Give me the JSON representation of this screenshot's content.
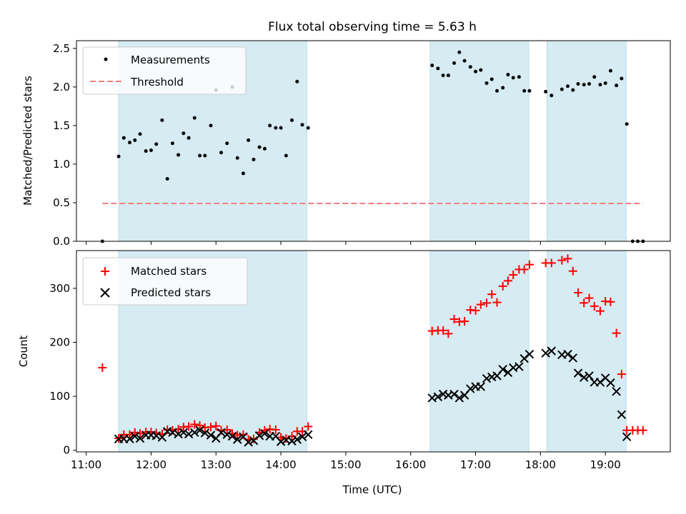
{
  "title": "Flux total observing time = 5.63 h",
  "xlabel": "Time (UTC)",
  "x_ticks": [
    "11:00",
    "12:00",
    "13:00",
    "14:00",
    "15:00",
    "16:00",
    "17:00",
    "18:00",
    "19:00"
  ],
  "colors": {
    "shade": "#add8e6",
    "threshold": "#f08080",
    "matched": "#ff0000",
    "predicted": "#000000",
    "measurement": "#000000"
  },
  "chart_data": [
    {
      "type": "scatter",
      "panel": "top",
      "xlim": [
        10.85,
        20.0
      ],
      "ylim": [
        0,
        2.6
      ],
      "ylabel": "Matched/Predicted stars",
      "y_ticks": [
        0.0,
        0.5,
        1.0,
        1.5,
        2.0,
        2.5
      ],
      "y_tick_labels": [
        "0.0",
        "0.5",
        "1.0",
        "1.5",
        "2.0",
        "2.5"
      ],
      "shaded_intervals": [
        [
          11.5,
          14.4
        ],
        [
          16.3,
          17.82
        ],
        [
          18.1,
          19.32
        ]
      ],
      "legend": {
        "placement": "top-left",
        "entries": [
          "Measurements",
          "Threshold"
        ]
      },
      "threshold": {
        "name": "Threshold",
        "y": 0.49,
        "x_range": [
          11.25,
          19.58
        ]
      },
      "series": [
        {
          "name": "Measurements",
          "points": [
            [
              11.25,
              0.0
            ],
            [
              11.5,
              1.1
            ],
            [
              11.58,
              1.34
            ],
            [
              11.67,
              1.28
            ],
            [
              11.75,
              1.31
            ],
            [
              11.83,
              1.39
            ],
            [
              11.92,
              1.17
            ],
            [
              12.0,
              1.18
            ],
            [
              12.08,
              1.26
            ],
            [
              12.17,
              1.57
            ],
            [
              12.25,
              0.81
            ],
            [
              12.33,
              1.27
            ],
            [
              12.42,
              1.12
            ],
            [
              12.5,
              1.4
            ],
            [
              12.58,
              1.34
            ],
            [
              12.67,
              1.6
            ],
            [
              12.75,
              1.11
            ],
            [
              12.83,
              1.11
            ],
            [
              12.92,
              1.5
            ],
            [
              13.0,
              1.96
            ],
            [
              13.08,
              1.15
            ],
            [
              13.17,
              1.27
            ],
            [
              13.25,
              2.0
            ],
            [
              13.33,
              1.08
            ],
            [
              13.42,
              0.88
            ],
            [
              13.5,
              1.31
            ],
            [
              13.58,
              1.06
            ],
            [
              13.67,
              1.22
            ],
            [
              13.75,
              1.2
            ],
            [
              13.83,
              1.5
            ],
            [
              13.92,
              1.47
            ],
            [
              14.0,
              1.47
            ],
            [
              14.08,
              1.11
            ],
            [
              14.17,
              1.57
            ],
            [
              14.25,
              2.07
            ],
            [
              14.33,
              1.51
            ],
            [
              14.42,
              1.47
            ],
            [
              16.33,
              2.28
            ],
            [
              16.42,
              2.24
            ],
            [
              16.5,
              2.15
            ],
            [
              16.58,
              2.15
            ],
            [
              16.67,
              2.31
            ],
            [
              16.75,
              2.45
            ],
            [
              16.83,
              2.34
            ],
            [
              16.92,
              2.26
            ],
            [
              17.0,
              2.2
            ],
            [
              17.08,
              2.22
            ],
            [
              17.17,
              2.05
            ],
            [
              17.25,
              2.1
            ],
            [
              17.33,
              1.95
            ],
            [
              17.42,
              1.99
            ],
            [
              17.5,
              2.16
            ],
            [
              17.58,
              2.12
            ],
            [
              17.67,
              2.13
            ],
            [
              17.75,
              1.95
            ],
            [
              17.83,
              1.95
            ],
            [
              18.08,
              1.94
            ],
            [
              18.17,
              1.89
            ],
            [
              18.33,
              1.97
            ],
            [
              18.42,
              2.01
            ],
            [
              18.5,
              1.96
            ],
            [
              18.58,
              2.04
            ],
            [
              18.67,
              2.03
            ],
            [
              18.75,
              2.04
            ],
            [
              18.83,
              2.13
            ],
            [
              18.92,
              2.03
            ],
            [
              19.0,
              2.05
            ],
            [
              19.08,
              2.21
            ],
            [
              19.17,
              2.02
            ],
            [
              19.25,
              2.11
            ],
            [
              19.33,
              1.52
            ],
            [
              19.42,
              0.0
            ],
            [
              19.5,
              0.0
            ],
            [
              19.58,
              0.0
            ]
          ]
        }
      ]
    },
    {
      "type": "scatter",
      "panel": "bottom",
      "xlim": [
        10.85,
        20.0
      ],
      "ylim": [
        -3,
        370
      ],
      "ylabel": "Count",
      "y_ticks": [
        0,
        100,
        200,
        300
      ],
      "y_tick_labels": [
        "0",
        "100",
        "200",
        "300"
      ],
      "shaded_intervals": [
        [
          11.5,
          14.4
        ],
        [
          16.3,
          17.82
        ],
        [
          18.1,
          19.32
        ]
      ],
      "legend": {
        "placement": "top-left",
        "entries": [
          "Matched stars",
          "Predicted stars"
        ]
      },
      "series": [
        {
          "name": "Matched stars",
          "marker": "plus",
          "points": [
            [
              11.25,
              153
            ],
            [
              11.5,
              22
            ],
            [
              11.58,
              29
            ],
            [
              11.67,
              29
            ],
            [
              11.75,
              33
            ],
            [
              11.83,
              31
            ],
            [
              11.92,
              34
            ],
            [
              12.0,
              34
            ],
            [
              12.08,
              32
            ],
            [
              12.17,
              30
            ],
            [
              12.25,
              38
            ],
            [
              12.33,
              37
            ],
            [
              12.42,
              39
            ],
            [
              12.5,
              43
            ],
            [
              12.58,
              44
            ],
            [
              12.67,
              48
            ],
            [
              12.75,
              46
            ],
            [
              12.83,
              42
            ],
            [
              12.92,
              43
            ],
            [
              13.0,
              45
            ],
            [
              13.08,
              37
            ],
            [
              13.17,
              38
            ],
            [
              13.25,
              31
            ],
            [
              13.33,
              28
            ],
            [
              13.42,
              29
            ],
            [
              13.5,
              20
            ],
            [
              13.58,
              21
            ],
            [
              13.67,
              33
            ],
            [
              13.75,
              37
            ],
            [
              13.83,
              39
            ],
            [
              13.92,
              38
            ],
            [
              14.0,
              24
            ],
            [
              14.08,
              22
            ],
            [
              14.17,
              26
            ],
            [
              14.25,
              35
            ],
            [
              14.33,
              35
            ],
            [
              14.42,
              44
            ],
            [
              16.33,
              221
            ],
            [
              16.42,
              222
            ],
            [
              16.5,
              222
            ],
            [
              16.58,
              216
            ],
            [
              16.67,
              243
            ],
            [
              16.75,
              238
            ],
            [
              16.83,
              239
            ],
            [
              16.92,
              260
            ],
            [
              17.0,
              259
            ],
            [
              17.08,
              270
            ],
            [
              17.17,
              273
            ],
            [
              17.25,
              289
            ],
            [
              17.33,
              274
            ],
            [
              17.42,
              304
            ],
            [
              17.5,
              314
            ],
            [
              17.58,
              325
            ],
            [
              17.67,
              335
            ],
            [
              17.75,
              335
            ],
            [
              17.83,
              344
            ],
            [
              18.08,
              347
            ],
            [
              18.17,
              347
            ],
            [
              18.33,
              352
            ],
            [
              18.42,
              355
            ],
            [
              18.5,
              332
            ],
            [
              18.58,
              292
            ],
            [
              18.67,
              273
            ],
            [
              18.75,
              282
            ],
            [
              18.83,
              267
            ],
            [
              18.92,
              258
            ],
            [
              19.0,
              276
            ],
            [
              19.08,
              275
            ],
            [
              19.17,
              217
            ],
            [
              19.25,
              141
            ],
            [
              19.33,
              37
            ],
            [
              19.42,
              37
            ],
            [
              19.5,
              37
            ],
            [
              19.58,
              37
            ]
          ]
        },
        {
          "name": "Predicted stars",
          "marker": "x",
          "points": [
            [
              11.5,
              21
            ],
            [
              11.58,
              21
            ],
            [
              11.67,
              21
            ],
            [
              11.75,
              26
            ],
            [
              11.83,
              22
            ],
            [
              11.92,
              28
            ],
            [
              12.0,
              28
            ],
            [
              12.08,
              27
            ],
            [
              12.17,
              24
            ],
            [
              12.25,
              35
            ],
            [
              12.33,
              33
            ],
            [
              12.42,
              30
            ],
            [
              12.5,
              33
            ],
            [
              12.58,
              30
            ],
            [
              12.67,
              33
            ],
            [
              12.75,
              37
            ],
            [
              12.83,
              32
            ],
            [
              12.92,
              28
            ],
            [
              13.0,
              22
            ],
            [
              13.08,
              33
            ],
            [
              13.17,
              29
            ],
            [
              13.25,
              26
            ],
            [
              13.33,
              20
            ],
            [
              13.42,
              25
            ],
            [
              13.5,
              15
            ],
            [
              13.58,
              18
            ],
            [
              13.67,
              27
            ],
            [
              13.75,
              31
            ],
            [
              13.83,
              26
            ],
            [
              13.92,
              26
            ],
            [
              14.0,
              16
            ],
            [
              14.08,
              19
            ],
            [
              14.17,
              17
            ],
            [
              14.25,
              20
            ],
            [
              14.33,
              25
            ],
            [
              14.42,
              29
            ],
            [
              16.33,
              97
            ],
            [
              16.42,
              99
            ],
            [
              16.5,
              104
            ],
            [
              16.58,
              102
            ],
            [
              16.67,
              104
            ],
            [
              16.75,
              97
            ],
            [
              16.83,
              102
            ],
            [
              16.92,
              114
            ],
            [
              17.0,
              118
            ],
            [
              17.08,
              118
            ],
            [
              17.17,
              133
            ],
            [
              17.25,
              136
            ],
            [
              17.33,
              138
            ],
            [
              17.42,
              150
            ],
            [
              17.5,
              144
            ],
            [
              17.58,
              153
            ],
            [
              17.67,
              155
            ],
            [
              17.75,
              170
            ],
            [
              17.83,
              178
            ],
            [
              18.08,
              180
            ],
            [
              18.17,
              184
            ],
            [
              18.33,
              177
            ],
            [
              18.42,
              178
            ],
            [
              18.5,
              171
            ],
            [
              18.58,
              143
            ],
            [
              18.67,
              135
            ],
            [
              18.75,
              138
            ],
            [
              18.83,
              126
            ],
            [
              18.92,
              126
            ],
            [
              19.0,
              134
            ],
            [
              19.08,
              125
            ],
            [
              19.17,
              109
            ],
            [
              19.25,
              66
            ],
            [
              19.33,
              25
            ]
          ]
        }
      ]
    }
  ]
}
